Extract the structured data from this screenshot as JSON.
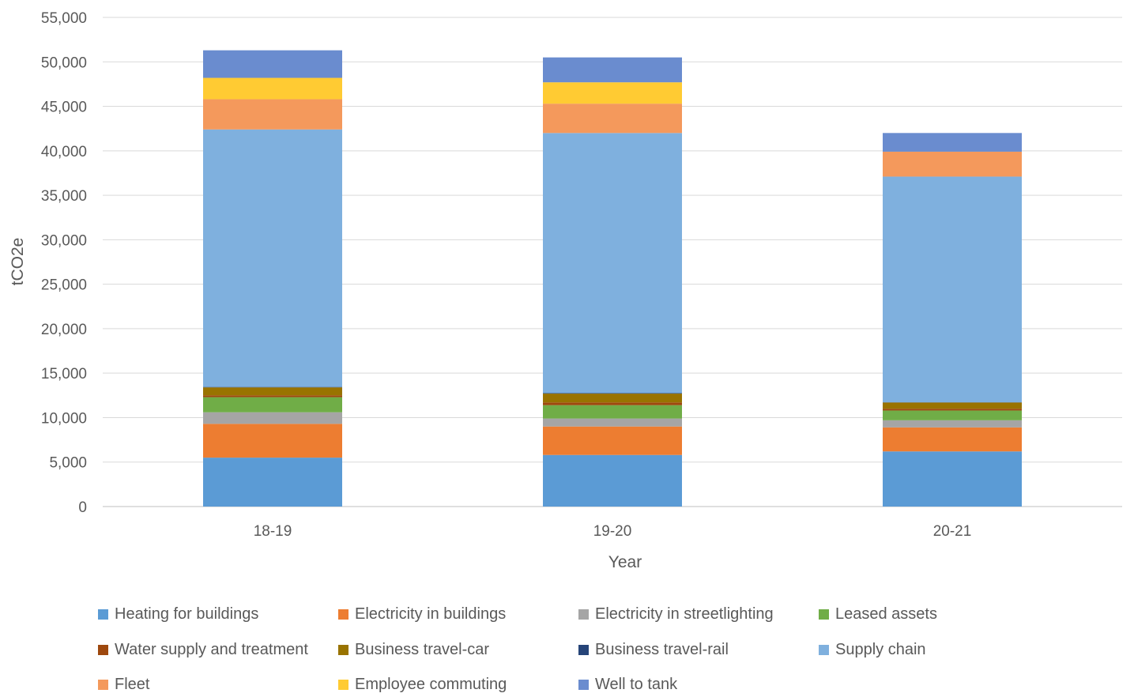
{
  "chart_data": {
    "type": "bar",
    "stacked": true,
    "title": "",
    "xlabel": "Year",
    "ylabel": "tCO2e",
    "categories": [
      "18-19",
      "19-20",
      "20-21"
    ],
    "ylim": [
      0,
      55000
    ],
    "yticks": [
      0,
      5000,
      10000,
      15000,
      20000,
      25000,
      30000,
      35000,
      40000,
      45000,
      50000,
      55000
    ],
    "ytick_labels": [
      "0",
      "5,000",
      "10,000",
      "15,000",
      "20,000",
      "25,000",
      "30,000",
      "35,000",
      "40,000",
      "45,000",
      "50,000",
      "55,000"
    ],
    "grid": "horizontal",
    "legend_position": "bottom",
    "series": [
      {
        "name": "Heating for buildings",
        "color": "#5B9BD5",
        "values": [
          5500,
          5800,
          6200
        ]
      },
      {
        "name": "Electricity in buildings",
        "color": "#ED7D31",
        "values": [
          3800,
          3200,
          2700
        ]
      },
      {
        "name": "Electricity in streetlighting",
        "color": "#A5A5A5",
        "values": [
          1300,
          900,
          800
        ]
      },
      {
        "name": "Leased assets",
        "color": "#70AD47",
        "values": [
          1700,
          1500,
          1100
        ]
      },
      {
        "name": "Water supply and treatment",
        "color": "#9E480E",
        "values": [
          200,
          300,
          200
        ]
      },
      {
        "name": "Business travel-car",
        "color": "#997300",
        "values": [
          900,
          1000,
          700
        ]
      },
      {
        "name": "Business travel-rail",
        "color": "#264478",
        "values": [
          50,
          50,
          20
        ]
      },
      {
        "name": "Supply chain",
        "color": "#7FB0DE",
        "values": [
          28950,
          29250,
          25380
        ]
      },
      {
        "name": "Fleet",
        "color": "#F4995C",
        "values": [
          3400,
          3300,
          2800
        ]
      },
      {
        "name": "Employee commuting",
        "color": "#FFCB33",
        "values": [
          2400,
          2400,
          0
        ]
      },
      {
        "name": "Well to tank",
        "color": "#6A8CCF",
        "values": [
          3100,
          2800,
          2100
        ]
      }
    ]
  }
}
